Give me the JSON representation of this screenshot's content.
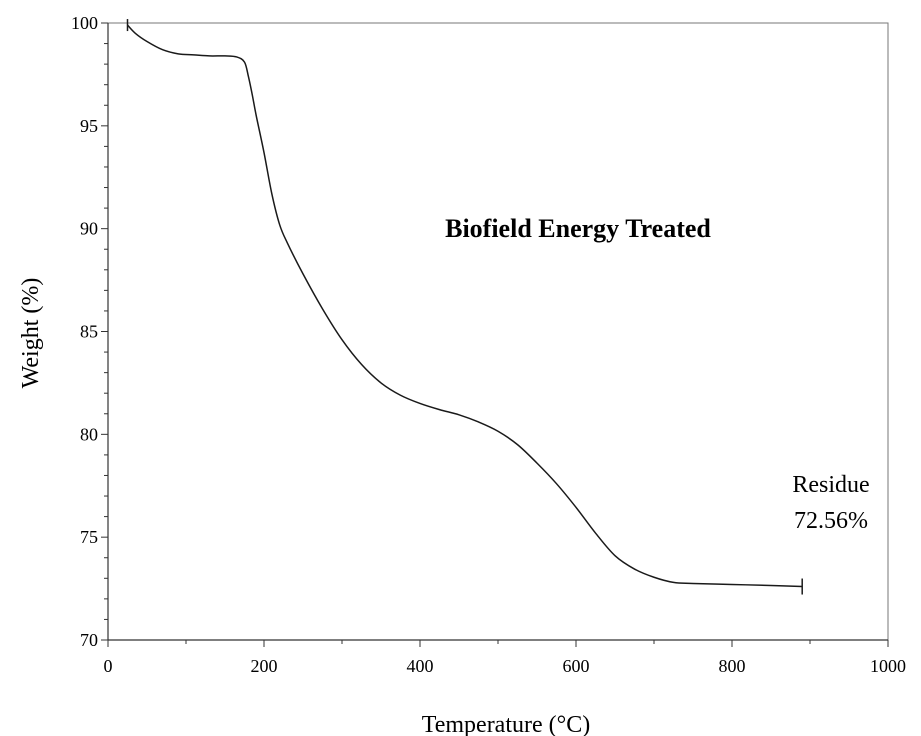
{
  "chart_data": {
    "type": "line",
    "title": "",
    "xlabel": "Temperature (°C)",
    "ylabel": "Weight (%)",
    "xlim": [
      0,
      1000
    ],
    "ylim": [
      70,
      100
    ],
    "x_ticks": [
      "0",
      "200",
      "400",
      "600",
      "800",
      "1000"
    ],
    "y_ticks": [
      "70",
      "75",
      "80",
      "85",
      "90",
      "95",
      "100"
    ],
    "grid": false,
    "legend": "none",
    "line_color": "#1a1a1a",
    "series": [
      {
        "x": [
          25,
          35,
          50,
          70,
          90,
          110,
          130,
          150,
          165,
          175,
          180,
          185,
          190,
          200,
          210,
          220,
          230,
          250,
          275,
          300,
          325,
          350,
          375,
          400,
          425,
          450,
          475,
          500,
          525,
          550,
          575,
          600,
          625,
          650,
          675,
          700,
          725,
          750,
          800,
          850,
          890
        ],
        "y": [
          99.9,
          99.5,
          99.1,
          98.7,
          98.5,
          98.45,
          98.4,
          98.4,
          98.35,
          98.1,
          97.4,
          96.5,
          95.5,
          93.7,
          91.7,
          90.2,
          89.3,
          87.8,
          86.1,
          84.6,
          83.4,
          82.5,
          81.9,
          81.5,
          81.2,
          80.95,
          80.6,
          80.15,
          79.5,
          78.6,
          77.6,
          76.45,
          75.2,
          74.1,
          73.45,
          73.05,
          72.8,
          72.75,
          72.7,
          72.65,
          72.6
        ]
      }
    ],
    "annotations": {
      "sample_label": "Biofield Energy Treated",
      "residue_label": "Residue",
      "residue_value": "72.56%"
    }
  }
}
